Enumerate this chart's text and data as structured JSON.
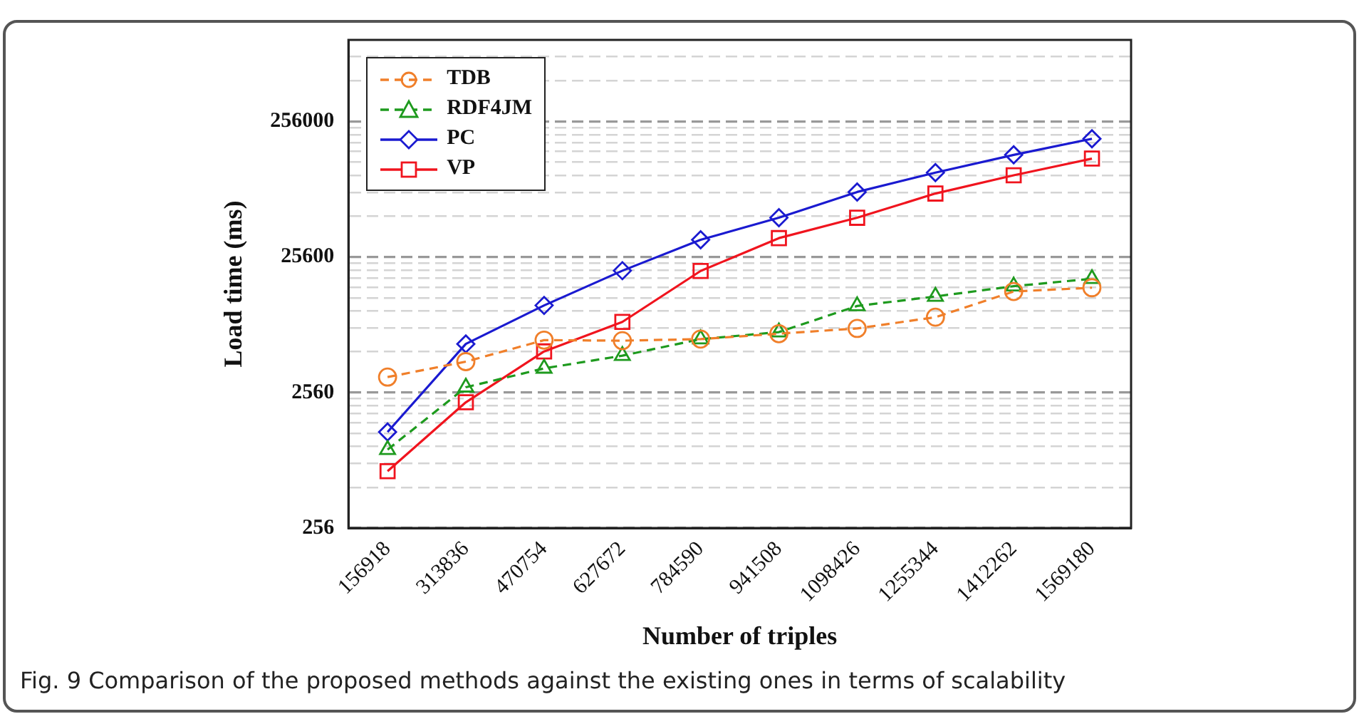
{
  "chart_data": {
    "type": "line",
    "xlabel": "Number of triples",
    "ylabel": "Load time (ms)",
    "categories": [
      "156918",
      "313836",
      "470754",
      "627672",
      "784590",
      "941508",
      "1098426",
      "1255344",
      "1412262",
      "1569180"
    ],
    "series": [
      {
        "name": "TDB",
        "color": "#f07f2a",
        "marker": "circle",
        "line_style": "dashed",
        "values": [
          3330,
          4330,
          6240,
          6180,
          6350,
          6960,
          7610,
          9210,
          14250,
          15200
        ]
      },
      {
        "name": "RDF4JM",
        "color": "#1e9a1e",
        "marker": "triangle",
        "line_style": "dashed",
        "values": [
          970,
          2800,
          3860,
          4790,
          6350,
          7150,
          11150,
          13100,
          15600,
          17700
        ]
      },
      {
        "name": "PC",
        "color": "#1a1ad0",
        "marker": "diamond",
        "line_style": "solid",
        "values": [
          1310,
          5850,
          11250,
          20300,
          34300,
          49900,
          77300,
          107500,
          145200,
          191000
        ]
      },
      {
        "name": "VP",
        "color": "#f0141e",
        "marker": "square",
        "line_style": "solid",
        "values": [
          673,
          2170,
          5150,
          8500,
          20200,
          35300,
          49900,
          75300,
          102700,
          136300
        ]
      }
    ],
    "log": "y",
    "ylim": [
      256,
      1024000
    ],
    "yticks": [
      256,
      {
        "value": 512,
        "label": null
      },
      {
        "value": 768,
        "label": null
      },
      {
        "value": 1024,
        "label": null
      },
      {
        "value": 1280,
        "label": null
      },
      {
        "value": 1536,
        "label": null
      },
      {
        "value": 1792,
        "label": null
      },
      {
        "value": 2048,
        "label": null
      },
      {
        "value": 2304,
        "label": null
      },
      2560,
      {
        "value": 5120,
        "label": null
      },
      {
        "value": 7680,
        "label": null
      },
      {
        "value": 10240,
        "label": null
      },
      {
        "value": 12800,
        "label": null
      },
      {
        "value": 15360,
        "label": null
      },
      {
        "value": 17920,
        "label": null
      },
      {
        "value": 20480,
        "label": null
      },
      {
        "value": 23040,
        "label": null
      },
      25600,
      {
        "value": 51200,
        "label": null
      },
      {
        "value": 76800,
        "label": null
      },
      {
        "value": 102400,
        "label": null
      },
      {
        "value": 128000,
        "label": null
      },
      {
        "value": 153600,
        "label": null
      },
      {
        "value": 179200,
        "label": null
      },
      {
        "value": 204800,
        "label": null
      },
      {
        "value": 230400,
        "label": null
      },
      256000,
      {
        "value": 512000,
        "label": null
      },
      {
        "value": 768000,
        "label": null
      }
    ],
    "grid": "y",
    "legend": "top left",
    "annotations": [
      "Fig. 9  Comparison of the proposed methods against the existing ones in terms of scalability"
    ]
  }
}
